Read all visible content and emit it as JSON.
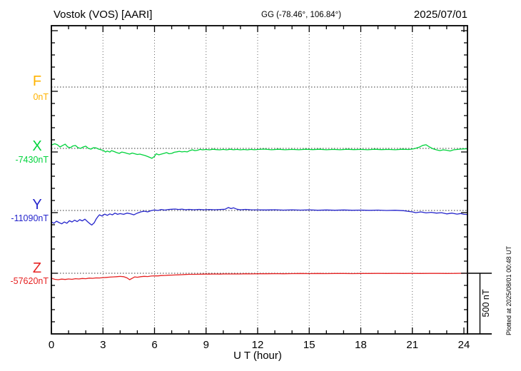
{
  "header": {
    "station_title": "Vostok (VOS)  [AARI]",
    "gg_coords": "GG (-78.46°, 106.84°)",
    "date": "2025/07/01"
  },
  "axis": {
    "xlabel": "U T (hour)"
  },
  "scale_bar": {
    "label": "500 nT"
  },
  "plotted_note": "Plotted at 2025/08/01 00:48 UT",
  "chart_data": {
    "type": "line",
    "title": "Vostok (VOS) [AARI] magnetogram, 2025/07/01",
    "xlabel": "U T (hour)",
    "x_range_hours": [
      0,
      24
    ],
    "x_ticks": [
      0,
      3,
      6,
      9,
      12,
      15,
      18,
      21,
      24
    ],
    "x_minor_tick_step_hours": 1,
    "y_minor_tick_nT": 100,
    "y_major_tick_nT": 500,
    "y_scale_division_nT": 500,
    "grid": "dotted vertical lines every 3 hours; dotted horizontal line at each component baseline",
    "points_format": "[UT_hour, offset_nT_from_component_baseline]",
    "series": [
      {
        "name": "F",
        "baseline_label": "0nT",
        "baseline_nT": 0,
        "color": "#FFB300",
        "points": []
      },
      {
        "name": "X",
        "baseline_label": "-7430nT",
        "baseline_nT": -7430,
        "color": "#00D33C",
        "points": [
          [
            0,
            28
          ],
          [
            0.2,
            38
          ],
          [
            0.35,
            30
          ],
          [
            0.5,
            12
          ],
          [
            0.65,
            24
          ],
          [
            0.8,
            35
          ],
          [
            0.95,
            12
          ],
          [
            1.1,
            6
          ],
          [
            1.25,
            20
          ],
          [
            1.4,
            24
          ],
          [
            1.55,
            6
          ],
          [
            1.7,
            0
          ],
          [
            1.85,
            12
          ],
          [
            2.0,
            18
          ],
          [
            2.15,
            0
          ],
          [
            2.3,
            -6
          ],
          [
            2.45,
            6
          ],
          [
            2.6,
            4
          ],
          [
            2.75,
            -6
          ],
          [
            2.9,
            -12
          ],
          [
            3.05,
            -18
          ],
          [
            3.15,
            -30
          ],
          [
            3.25,
            -22
          ],
          [
            3.4,
            -30
          ],
          [
            3.5,
            -18
          ],
          [
            3.65,
            -26
          ],
          [
            3.8,
            -35
          ],
          [
            3.95,
            -41
          ],
          [
            4.1,
            -30
          ],
          [
            4.25,
            -35
          ],
          [
            4.4,
            -41
          ],
          [
            4.55,
            -47
          ],
          [
            4.7,
            -38
          ],
          [
            4.85,
            -44
          ],
          [
            5.0,
            -50
          ],
          [
            5.15,
            -47
          ],
          [
            5.3,
            -53
          ],
          [
            5.45,
            -59
          ],
          [
            5.6,
            -67
          ],
          [
            5.75,
            -76
          ],
          [
            5.85,
            -82
          ],
          [
            6.0,
            -65
          ],
          [
            6.1,
            -44
          ],
          [
            6.25,
            -53
          ],
          [
            6.4,
            -47
          ],
          [
            6.55,
            -41
          ],
          [
            6.7,
            -35
          ],
          [
            6.85,
            -44
          ],
          [
            7.0,
            -41
          ],
          [
            7.15,
            -32
          ],
          [
            7.3,
            -28
          ],
          [
            7.45,
            -24
          ],
          [
            7.6,
            -29
          ],
          [
            7.75,
            -26
          ],
          [
            7.9,
            -29
          ],
          [
            8.05,
            -18
          ],
          [
            8.2,
            -12
          ],
          [
            8.35,
            -18
          ],
          [
            8.5,
            -15
          ],
          [
            8.65,
            -8
          ],
          [
            8.8,
            -12
          ],
          [
            9.0,
            -9
          ],
          [
            9.2,
            -12
          ],
          [
            9.4,
            -7
          ],
          [
            9.6,
            -10
          ],
          [
            9.8,
            -12
          ],
          [
            10.0,
            -8
          ],
          [
            10.2,
            -12
          ],
          [
            10.4,
            -7
          ],
          [
            10.6,
            -11
          ],
          [
            10.8,
            -8
          ],
          [
            11.0,
            -12
          ],
          [
            11.2,
            -9
          ],
          [
            11.4,
            -12
          ],
          [
            11.6,
            -8
          ],
          [
            11.8,
            -11
          ],
          [
            12.0,
            -9
          ],
          [
            12.4,
            -6
          ],
          [
            12.8,
            -11
          ],
          [
            13.2,
            -7
          ],
          [
            13.6,
            -11
          ],
          [
            14.0,
            -8
          ],
          [
            14.4,
            -11
          ],
          [
            14.8,
            -7
          ],
          [
            15.2,
            -10
          ],
          [
            15.6,
            -7
          ],
          [
            16.0,
            -11
          ],
          [
            16.4,
            -8
          ],
          [
            16.8,
            -11
          ],
          [
            17.2,
            -7
          ],
          [
            17.6,
            -10
          ],
          [
            18.0,
            -8
          ],
          [
            18.4,
            -11
          ],
          [
            18.8,
            -7
          ],
          [
            19.2,
            -10
          ],
          [
            19.6,
            -8
          ],
          [
            20.0,
            -11
          ],
          [
            20.4,
            -7
          ],
          [
            20.8,
            -9
          ],
          [
            21.1,
            -3
          ],
          [
            21.4,
            10
          ],
          [
            21.6,
            25
          ],
          [
            21.8,
            30
          ],
          [
            22.0,
            12
          ],
          [
            22.2,
            -3
          ],
          [
            22.4,
            -12
          ],
          [
            22.6,
            -18
          ],
          [
            22.8,
            -12
          ],
          [
            23.0,
            -15
          ],
          [
            23.2,
            -21
          ],
          [
            23.4,
            -12
          ],
          [
            23.6,
            -9
          ],
          [
            23.8,
            -6
          ],
          [
            24.0,
            -4
          ],
          [
            24.2,
            -3
          ]
        ]
      },
      {
        "name": "Y",
        "baseline_label": "-11090nT",
        "baseline_nT": -11090,
        "color": "#2525CC",
        "points": [
          [
            0,
            -95
          ],
          [
            0.15,
            -105
          ],
          [
            0.3,
            -88
          ],
          [
            0.45,
            -100
          ],
          [
            0.6,
            -110
          ],
          [
            0.75,
            -95
          ],
          [
            0.9,
            -105
          ],
          [
            1.05,
            -85
          ],
          [
            1.2,
            -95
          ],
          [
            1.35,
            -80
          ],
          [
            1.5,
            -92
          ],
          [
            1.65,
            -76
          ],
          [
            1.8,
            -86
          ],
          [
            1.95,
            -72
          ],
          [
            2.1,
            -92
          ],
          [
            2.25,
            -110
          ],
          [
            2.35,
            -120
          ],
          [
            2.5,
            -100
          ],
          [
            2.6,
            -72
          ],
          [
            2.7,
            -52
          ],
          [
            2.8,
            -36
          ],
          [
            2.95,
            -46
          ],
          [
            3.1,
            -30
          ],
          [
            3.25,
            -40
          ],
          [
            3.4,
            -28
          ],
          [
            3.55,
            -36
          ],
          [
            3.7,
            -22
          ],
          [
            3.85,
            -32
          ],
          [
            4.0,
            -26
          ],
          [
            4.2,
            -32
          ],
          [
            4.4,
            -22
          ],
          [
            4.6,
            -27
          ],
          [
            4.8,
            -36
          ],
          [
            5.0,
            -22
          ],
          [
            5.2,
            -12
          ],
          [
            5.4,
            -6
          ],
          [
            5.6,
            -12
          ],
          [
            5.8,
            -2
          ],
          [
            6.0,
            4
          ],
          [
            6.2,
            0
          ],
          [
            6.4,
            8
          ],
          [
            6.6,
            3
          ],
          [
            6.8,
            8
          ],
          [
            7.0,
            10
          ],
          [
            7.2,
            12
          ],
          [
            7.4,
            8
          ],
          [
            7.6,
            11
          ],
          [
            7.8,
            6
          ],
          [
            8.0,
            9
          ],
          [
            8.3,
            6
          ],
          [
            8.6,
            9
          ],
          [
            8.9,
            6
          ],
          [
            9.2,
            8
          ],
          [
            9.5,
            6
          ],
          [
            9.8,
            8
          ],
          [
            10.1,
            10
          ],
          [
            10.3,
            25
          ],
          [
            10.45,
            15
          ],
          [
            10.6,
            22
          ],
          [
            10.8,
            10
          ],
          [
            11.0,
            6
          ],
          [
            11.3,
            9
          ],
          [
            11.6,
            6
          ],
          [
            12.0,
            5
          ],
          [
            12.5,
            4
          ],
          [
            13.0,
            6
          ],
          [
            13.5,
            3
          ],
          [
            14.0,
            5
          ],
          [
            14.5,
            3
          ],
          [
            15.0,
            5
          ],
          [
            15.5,
            2
          ],
          [
            16.0,
            4
          ],
          [
            16.5,
            2
          ],
          [
            17.0,
            4
          ],
          [
            17.5,
            2
          ],
          [
            18.0,
            3
          ],
          [
            18.5,
            1
          ],
          [
            19.0,
            3
          ],
          [
            19.5,
            0
          ],
          [
            20.0,
            2
          ],
          [
            20.5,
            -2
          ],
          [
            20.8,
            -8
          ],
          [
            21.0,
            -12
          ],
          [
            21.2,
            -18
          ],
          [
            21.5,
            -12
          ],
          [
            21.8,
            -20
          ],
          [
            22.1,
            -15
          ],
          [
            22.4,
            -22
          ],
          [
            22.7,
            -18
          ],
          [
            23.0,
            -28
          ],
          [
            23.3,
            -22
          ],
          [
            23.6,
            -30
          ],
          [
            23.8,
            -25
          ],
          [
            24.0,
            -32
          ],
          [
            24.2,
            -33
          ]
        ]
      },
      {
        "name": "Z",
        "baseline_label": "-57620nT",
        "baseline_nT": -57620,
        "color": "#E62222",
        "points": [
          [
            0,
            -41
          ],
          [
            0.2,
            -50
          ],
          [
            0.4,
            -53
          ],
          [
            0.6,
            -48
          ],
          [
            0.8,
            -51
          ],
          [
            1.0,
            -47
          ],
          [
            1.2,
            -50
          ],
          [
            1.4,
            -45
          ],
          [
            1.6,
            -47
          ],
          [
            1.8,
            -43
          ],
          [
            2.0,
            -45
          ],
          [
            2.2,
            -40
          ],
          [
            2.4,
            -42
          ],
          [
            2.6,
            -38
          ],
          [
            2.8,
            -39
          ],
          [
            3.0,
            -36
          ],
          [
            3.2,
            -34
          ],
          [
            3.4,
            -32
          ],
          [
            3.6,
            -30
          ],
          [
            3.8,
            -28
          ],
          [
            4.0,
            -26
          ],
          [
            4.2,
            -28
          ],
          [
            4.4,
            -38
          ],
          [
            4.55,
            -53
          ],
          [
            4.7,
            -42
          ],
          [
            4.85,
            -30
          ],
          [
            5.0,
            -33
          ],
          [
            5.2,
            -28
          ],
          [
            5.4,
            -25
          ],
          [
            5.6,
            -27
          ],
          [
            5.8,
            -23
          ],
          [
            6.0,
            -21
          ],
          [
            6.2,
            -22
          ],
          [
            6.4,
            -19
          ],
          [
            6.6,
            -18
          ],
          [
            6.8,
            -16
          ],
          [
            7.0,
            -15
          ],
          [
            7.2,
            -14
          ],
          [
            7.4,
            -13
          ],
          [
            7.6,
            -12
          ],
          [
            7.8,
            -10
          ],
          [
            8.0,
            -9
          ],
          [
            8.3,
            -9
          ],
          [
            8.6,
            -8
          ],
          [
            8.9,
            -7
          ],
          [
            9.2,
            -7
          ],
          [
            9.5,
            -6
          ],
          [
            9.8,
            -7
          ],
          [
            10.1,
            -5
          ],
          [
            10.4,
            -6
          ],
          [
            10.7,
            -5
          ],
          [
            11.0,
            -6
          ],
          [
            11.3,
            -4
          ],
          [
            11.6,
            -5
          ],
          [
            12.0,
            -4
          ],
          [
            12.5,
            -4
          ],
          [
            13.0,
            -3
          ],
          [
            13.5,
            -4
          ],
          [
            14.0,
            -3
          ],
          [
            14.5,
            -2
          ],
          [
            15.0,
            -3
          ],
          [
            15.5,
            -2
          ],
          [
            16.0,
            -3
          ],
          [
            16.5,
            -2
          ],
          [
            17.0,
            -2
          ],
          [
            17.5,
            -3
          ],
          [
            18.0,
            -2
          ],
          [
            18.5,
            -2
          ],
          [
            19.0,
            -1
          ],
          [
            19.5,
            -2
          ],
          [
            20.0,
            -1
          ],
          [
            20.5,
            -2
          ],
          [
            21.0,
            -1
          ],
          [
            21.5,
            -2
          ],
          [
            22.0,
            -1
          ],
          [
            22.5,
            -1
          ],
          [
            23.0,
            -2
          ],
          [
            23.5,
            -1
          ],
          [
            24.0,
            0
          ],
          [
            24.2,
            0
          ]
        ]
      }
    ]
  }
}
